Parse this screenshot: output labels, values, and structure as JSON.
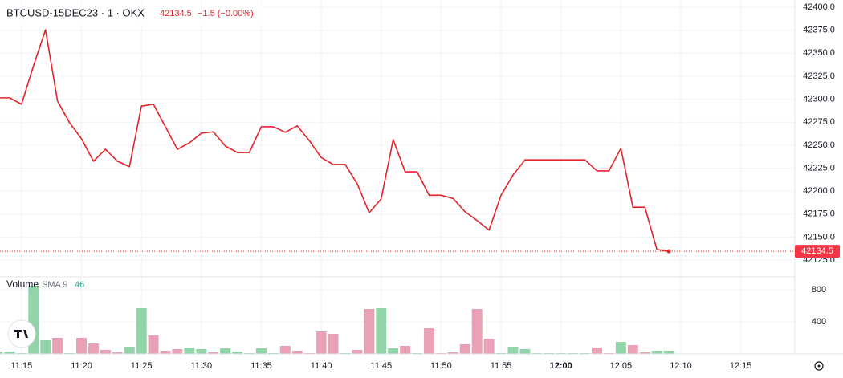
{
  "chart_data": {
    "type": "line",
    "title": "BTCUSD-15DEC23 · 1 · OKX",
    "change_label": "−1.5 (−0.00%)",
    "x": [
      "11:13",
      "11:14",
      "11:15",
      "11:16",
      "11:17",
      "11:18",
      "11:19",
      "11:20",
      "11:21",
      "11:22",
      "11:23",
      "11:24",
      "11:25",
      "11:26",
      "11:27",
      "11:28",
      "11:29",
      "11:30",
      "11:31",
      "11:32",
      "11:33",
      "11:34",
      "11:35",
      "11:36",
      "11:37",
      "11:38",
      "11:39",
      "11:40",
      "11:41",
      "11:42",
      "11:43",
      "11:44",
      "11:45",
      "11:46",
      "11:47",
      "11:48",
      "11:49",
      "11:50",
      "11:51",
      "11:52",
      "11:53",
      "11:54",
      "11:55",
      "11:56",
      "11:57",
      "11:58",
      "11:59",
      "12:00",
      "12:01",
      "12:02",
      "12:03",
      "12:04",
      "12:05",
      "12:06",
      "12:07",
      "12:08",
      "12:09"
    ],
    "series": [
      {
        "color": "#e3242b",
        "values": [
          42301.5,
          42301.5,
          42294.5,
          42336.5,
          42375.5,
          42298,
          42274.5,
          42257,
          42232.5,
          42245.5,
          42232.5,
          42226.5,
          42292.5,
          42294.5,
          42270,
          42245.5,
          42252.5,
          42263,
          42264.5,
          42249,
          42242,
          42242,
          42270,
          42270,
          42264,
          42271,
          42255,
          42236.5,
          42229,
          42229,
          42208,
          42176.5,
          42191.5,
          42256,
          42221,
          42221,
          42195.5,
          42195.5,
          42192,
          42177.5,
          42168,
          42157.5,
          42195.5,
          42217.5,
          42234,
          42234,
          42234,
          42234,
          42234,
          42234,
          42222,
          42222,
          42246.5,
          42182.5,
          42182.5,
          42136.5,
          42134.5
        ]
      }
    ],
    "ylim": [
      42106.7,
      42407.9
    ],
    "yticks": [
      {
        "value": 42125,
        "label": "42125.0"
      },
      {
        "value": 42150,
        "label": "42150.0"
      },
      {
        "value": 42175,
        "label": "42175.0"
      },
      {
        "value": 42200,
        "label": "42200.0"
      },
      {
        "value": 42225,
        "label": "42225.0"
      },
      {
        "value": 42250,
        "label": "42250.0"
      },
      {
        "value": 42275,
        "label": "42275.0"
      },
      {
        "value": 42300,
        "label": "42300.0"
      },
      {
        "value": 42325,
        "label": "42325.0"
      },
      {
        "value": 42350,
        "label": "42350.0"
      },
      {
        "value": 42375,
        "label": "42375.0"
      },
      {
        "value": 42400,
        "label": "42400.0"
      }
    ],
    "xticks": [
      "11:15",
      "11:20",
      "11:25",
      "11:30",
      "11:35",
      "11:40",
      "11:45",
      "11:50",
      "11:55",
      "12:00",
      "12:05",
      "12:10",
      "12:15"
    ],
    "grid": true,
    "volume": {
      "title": "Volume",
      "indicator": "SMA 9",
      "indicator_value": 46,
      "indicator_color": "#22ab94",
      "values": [
        20,
        30,
        10,
        850,
        170,
        200,
        10,
        200,
        130,
        50,
        20,
        90,
        570,
        230,
        40,
        60,
        80,
        60,
        20,
        70,
        30,
        10,
        70,
        10,
        100,
        40,
        10,
        280,
        250,
        10,
        50,
        560,
        570,
        70,
        100,
        10,
        320,
        10,
        20,
        120,
        560,
        190,
        10,
        90,
        60,
        10,
        10,
        10,
        10,
        10,
        80,
        10,
        150,
        110,
        20,
        40,
        40
      ],
      "colors": [
        "#92d4a9",
        "#92d4a9",
        "#92d4a9",
        "#92d4a9",
        "#92d4a9",
        "#e8a1b5",
        "#92d4a9",
        "#e8a1b5",
        "#e8a1b5",
        "#e8a1b5",
        "#e8a1b5",
        "#92d4a9",
        "#92d4a9",
        "#e8a1b5",
        "#e8a1b5",
        "#e8a1b5",
        "#92d4a9",
        "#92d4a9",
        "#e8a1b5",
        "#92d4a9",
        "#92d4a9",
        "#92d4a9",
        "#92d4a9",
        "#92d4a9",
        "#e8a1b5",
        "#e8a1b5",
        "#e8a1b5",
        "#e8a1b5",
        "#e8a1b5",
        "#92d4a9",
        "#e8a1b5",
        "#e8a1b5",
        "#92d4a9",
        "#92d4a9",
        "#e8a1b5",
        "#92d4a9",
        "#e8a1b5",
        "#e8a1b5",
        "#e8a1b5",
        "#e8a1b5",
        "#e8a1b5",
        "#e8a1b5",
        "#92d4a9",
        "#92d4a9",
        "#92d4a9",
        "#92d4a9",
        "#92d4a9",
        "#92d4a9",
        "#92d4a9",
        "#92d4a9",
        "#e8a1b5",
        "#e8a1b5",
        "#92d4a9",
        "#e8a1b5",
        "#e8a1b5",
        "#92d4a9",
        "#92d4a9"
      ],
      "ylim": [
        0,
        960
      ],
      "yticks": [
        400,
        800
      ]
    }
  }
}
